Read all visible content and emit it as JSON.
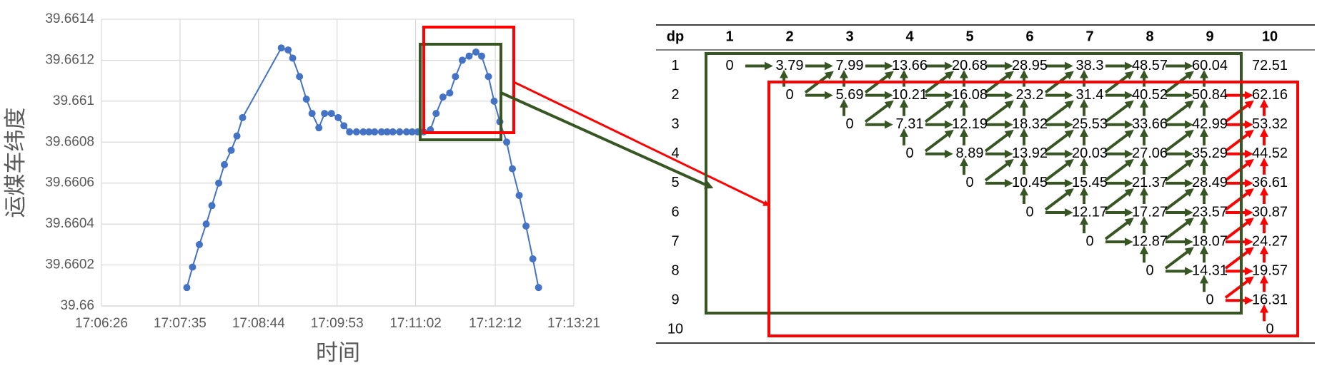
{
  "chart_data": {
    "type": "line",
    "xlabel": "时间",
    "ylabel": "运煤车纬度",
    "x": [
      61661,
      61666,
      61672,
      61678,
      61683,
      61689,
      61694,
      61700,
      61705,
      61710,
      61744,
      61750,
      61754,
      61760,
      61766,
      61771,
      61777,
      61782,
      61788,
      61794,
      61799,
      61804,
      61810,
      61816,
      61821,
      61826,
      61832,
      61837,
      61842,
      61848,
      61854,
      61859,
      61864,
      61869,
      61875,
      61880,
      61886,
      61892,
      61897,
      61903,
      61909,
      61915,
      61920,
      61926,
      61931,
      61936,
      61942,
      61947,
      61953,
      61959,
      61965,
      61970
    ],
    "series": [
      {
        "color": "#4472c4",
        "values": [
          39.66009,
          39.66019,
          39.6603,
          39.6604,
          39.66049,
          39.6606,
          39.66069,
          39.66076,
          39.66083,
          39.66092,
          39.66126,
          39.66125,
          39.66121,
          39.66112,
          39.66101,
          39.66094,
          39.66087,
          39.66094,
          39.66094,
          39.66092,
          39.66088,
          39.66085,
          39.66085,
          39.66085,
          39.66085,
          39.66085,
          39.66085,
          39.66085,
          39.66085,
          39.66085,
          39.66085,
          39.66085,
          39.66085,
          39.66085,
          39.66086,
          39.66094,
          39.66102,
          39.66104,
          39.66112,
          39.6612,
          39.66122,
          39.66124,
          39.66122,
          39.66112,
          39.661,
          39.6609,
          39.6608,
          39.66067,
          39.66054,
          39.66039,
          39.66023,
          39.66009
        ]
      }
    ],
    "xlim": [
      61586,
      62001
    ],
    "xticks": [
      {
        "value": 61586,
        "label": "17:06:26"
      },
      {
        "value": 61655,
        "label": "17:07:35"
      },
      {
        "value": 61724,
        "label": "17:08:44"
      },
      {
        "value": 61793,
        "label": "17:09:53"
      },
      {
        "value": 61862,
        "label": "17:11:02"
      },
      {
        "value": 61932,
        "label": "17:12:12"
      },
      {
        "value": 62001,
        "label": "17:13:21"
      }
    ],
    "ylim": [
      39.66,
      39.6614
    ],
    "yticks": [
      39.66,
      39.6602,
      39.6604,
      39.6606,
      39.6608,
      39.661,
      39.6612,
      39.6614
    ],
    "grid": true
  },
  "table": {
    "header": [
      "dp",
      1,
      2,
      3,
      4,
      5,
      6,
      7,
      8,
      9,
      10
    ],
    "rows": [
      [
        1,
        0,
        3.79,
        7.99,
        13.66,
        20.68,
        28.95,
        38.3,
        48.57,
        60.04,
        72.51
      ],
      [
        2,
        null,
        0,
        5.69,
        10.21,
        16.08,
        23.2,
        31.4,
        40.52,
        50.84,
        62.16
      ],
      [
        3,
        null,
        null,
        0,
        7.31,
        12.19,
        18.32,
        25.53,
        33.66,
        42.99,
        53.32
      ],
      [
        4,
        null,
        null,
        null,
        0,
        8.89,
        13.92,
        20.03,
        27.06,
        35.29,
        44.52
      ],
      [
        5,
        null,
        null,
        null,
        null,
        0,
        10.45,
        15.45,
        21.37,
        28.49,
        36.61
      ],
      [
        6,
        null,
        null,
        null,
        null,
        null,
        0,
        12.17,
        17.27,
        23.57,
        30.87
      ],
      [
        7,
        null,
        null,
        null,
        null,
        null,
        null,
        0,
        12.87,
        18.07,
        24.27
      ],
      [
        8,
        null,
        null,
        null,
        null,
        null,
        null,
        null,
        0,
        14.31,
        19.57
      ],
      [
        9,
        null,
        null,
        null,
        null,
        null,
        null,
        null,
        null,
        0,
        16.31
      ],
      [
        10,
        null,
        null,
        null,
        null,
        null,
        null,
        null,
        null,
        null,
        0
      ]
    ]
  }
}
